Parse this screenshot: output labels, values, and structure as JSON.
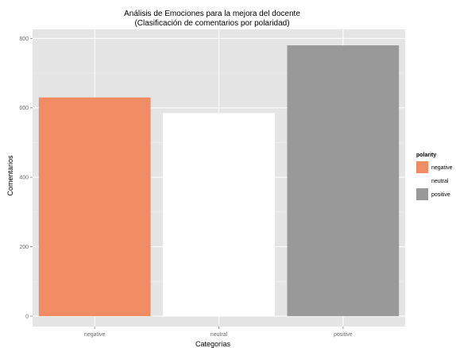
{
  "chart_data": {
    "type": "bar",
    "title": "Análisis de Emociones para la mejora del docente",
    "subtitle": "(Clasificación de comentarios por polaridad)",
    "xlabel": "Categorías",
    "ylabel": "Comentarios",
    "categories": [
      "negative",
      "neutral",
      "positive"
    ],
    "values": [
      630,
      585,
      780
    ],
    "colors": [
      "#f08c64",
      "#ffffff",
      "#999999"
    ],
    "ylim": [
      -30,
      826
    ],
    "yticks": [
      0,
      200,
      400,
      600,
      800
    ],
    "grid": true,
    "legend": {
      "title": "polarity",
      "placement": "right",
      "items": [
        {
          "label": "negative",
          "color": "#f08c64"
        },
        {
          "label": "neutral",
          "color": "#ffffff"
        },
        {
          "label": "positive",
          "color": "#999999"
        }
      ]
    }
  },
  "colors": {
    "panel_background": "#e5e5e5",
    "grid_major": "#ffffff",
    "grid_minor": "#f2f2f2",
    "tick_text": "#6e6e6e"
  }
}
